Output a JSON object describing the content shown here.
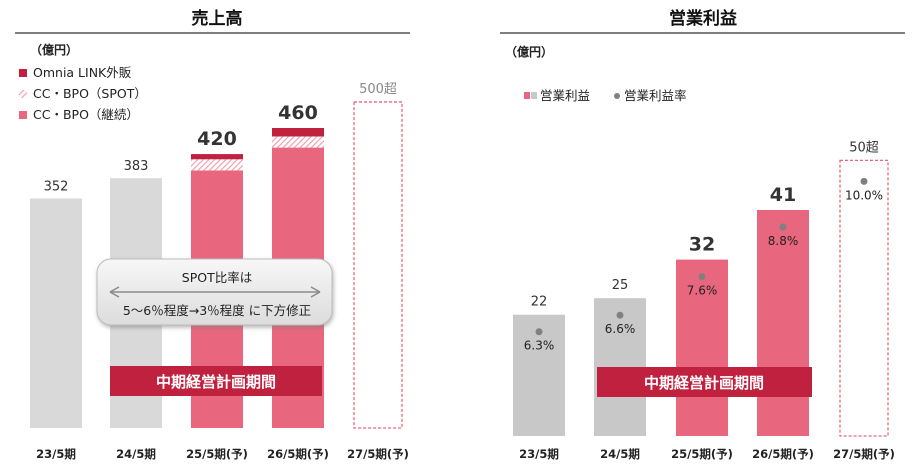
{
  "chart_data": [
    {
      "type": "bar",
      "title": "売上高",
      "unit": "（億円）",
      "categories": [
        "23/5期",
        "24/5期",
        "25/5期(予)",
        "26/5期(予)",
        "27/5期(予)"
      ],
      "series": [
        {
          "name": "CC・BPO（継続）",
          "values": [
            352,
            383,
            395,
            430,
            null
          ]
        },
        {
          "name": "CC・BPO（SPOT）",
          "values": [
            null,
            null,
            17,
            17,
            null
          ]
        },
        {
          "name": "Omnia LINK外販",
          "values": [
            null,
            null,
            8,
            13,
            null
          ]
        }
      ],
      "totals": [
        352,
        383,
        420,
        460,
        500
      ],
      "total_labels": [
        "352",
        "383",
        "420",
        "460",
        "500超"
      ],
      "target_label": "500超",
      "ylim": [
        0,
        600
      ],
      "legend": [
        "Omnia LINK外販",
        "CC・BPO（SPOT）",
        "CC・BPO（継続）"
      ],
      "legend_position": "top-left",
      "callout": {
        "line1": "SPOT比率は",
        "line2": "5～6％程度→3％程度 に下方修正"
      },
      "band_label": "中期経営計画期間",
      "colors": {
        "actual": "#d9d9d9",
        "forecast": "#e8677e",
        "omnia": "#c0213f",
        "spot_hatch": "#f4b3bf",
        "target": "#e8677e",
        "band": "#c0213f"
      }
    },
    {
      "type": "bar",
      "title": "営業利益",
      "unit": "（億円）",
      "categories": [
        "23/5期",
        "24/5期",
        "25/5期(予)",
        "26/5期(予)",
        "27/5期(予)"
      ],
      "series": [
        {
          "name": "営業利益",
          "values": [
            22,
            25,
            32,
            41,
            50
          ]
        },
        {
          "name": "営業利益率",
          "values": [
            6.3,
            6.6,
            7.6,
            8.8,
            10.0
          ]
        }
      ],
      "value_labels": [
        "22",
        "25",
        "32",
        "41",
        "50超"
      ],
      "rate_labels": [
        "6.3%",
        "6.6%",
        "7.6%",
        "8.8%",
        "10.0%"
      ],
      "ylim": [
        0,
        68
      ],
      "legend": [
        "営業利益",
        "営業利益率"
      ],
      "legend_position": "top-left",
      "band_label": "中期経営計画期間",
      "colors": {
        "actual": "#c8c8c8",
        "forecast": "#e8677e",
        "dot": "#808080",
        "target": "#e8677e",
        "band": "#c0213f"
      }
    }
  ]
}
